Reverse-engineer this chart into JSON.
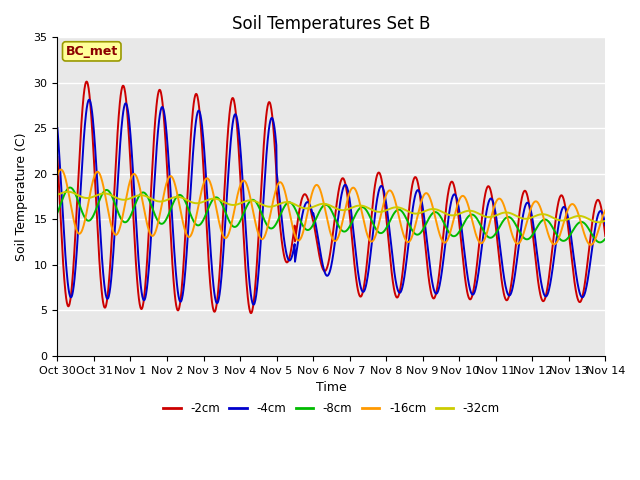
{
  "title": "Soil Temperatures Set B",
  "xlabel": "Time",
  "ylabel": "Soil Temperature (C)",
  "annotation": "BC_met",
  "ylim": [
    0,
    35
  ],
  "yticks": [
    0,
    5,
    10,
    15,
    20,
    25,
    30,
    35
  ],
  "xtick_labels": [
    "Oct 30",
    "Oct 31",
    "Nov 1",
    "Nov 2",
    "Nov 3",
    "Nov 4",
    "Nov 5",
    "Nov 6",
    "Nov 7",
    "Nov 8",
    "Nov 9",
    "Nov 10",
    "Nov 11",
    "Nov 12",
    "Nov 13",
    "Nov 14"
  ],
  "series_colors": [
    "#cc0000",
    "#0000cc",
    "#00bb00",
    "#ff9900",
    "#cccc00"
  ],
  "series_labels": [
    "-2cm",
    "-4cm",
    "-8cm",
    "-16cm",
    "-32cm"
  ],
  "bg_color": "#e8e8e8",
  "title_fontsize": 12,
  "label_fontsize": 9,
  "tick_fontsize": 8
}
